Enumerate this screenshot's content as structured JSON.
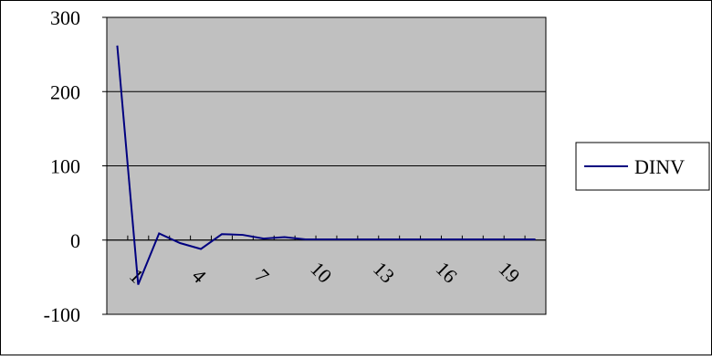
{
  "chart_data": {
    "type": "line",
    "title": "",
    "xlabel": "",
    "ylabel": "",
    "x": [
      1,
      2,
      3,
      4,
      5,
      6,
      7,
      8,
      9,
      10,
      11,
      12,
      13,
      14,
      15,
      16,
      17,
      18,
      19,
      20,
      21
    ],
    "x_tick_labels": [
      "1",
      "4",
      "7",
      "10",
      "13",
      "16",
      "19"
    ],
    "x_tick_values": [
      1,
      4,
      7,
      10,
      13,
      16,
      19
    ],
    "ylim": [
      -100,
      300
    ],
    "y_tick_labels": [
      "300",
      "200",
      "100",
      "0",
      "-100"
    ],
    "y_tick_values": [
      300,
      200,
      100,
      0,
      -100
    ],
    "grid": true,
    "legend_position": "right",
    "plot_background": "#c0c0c0",
    "series": [
      {
        "name": "DINV",
        "color": "#000080",
        "values": [
          262,
          -60,
          9,
          -4,
          -12,
          8,
          7,
          2,
          4,
          1,
          1,
          1,
          1,
          1,
          1,
          1,
          1,
          1,
          1,
          1,
          1
        ]
      }
    ]
  }
}
